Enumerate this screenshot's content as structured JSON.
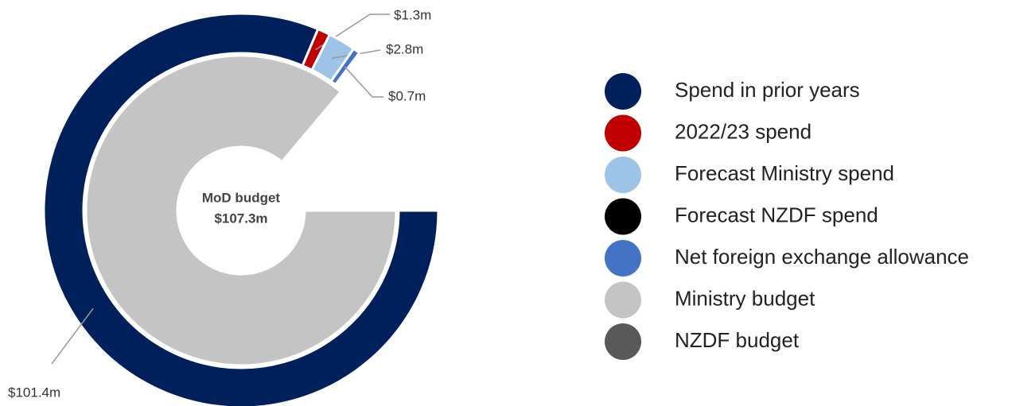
{
  "chart_data": {
    "type": "donut",
    "categories": [
      "Spend in prior years",
      "2022/23 spend",
      "Forecast Ministry spend",
      "Forecast NZDF spend",
      "Net foreign exchange allowance",
      "Ministry budget",
      "NZDF budget"
    ],
    "colors": [
      "#00205b",
      "#c00000",
      "#9dc3e6",
      "#000000",
      "#4472c4",
      "#c4c4c4",
      "#595959"
    ],
    "rings": [
      {
        "values": [
          101.4,
          1.3,
          2.8,
          0,
          0.7,
          null,
          null
        ],
        "value_labels": [
          "$101.4m",
          "$1.3m",
          "$2.8m",
          null,
          "$0.7m",
          null,
          null
        ]
      },
      {
        "values": [
          null,
          null,
          null,
          null,
          null,
          107.3,
          0
        ],
        "value_labels": [
          null,
          null,
          null,
          null,
          null,
          "$107.3m",
          null
        ]
      }
    ],
    "center_title": "MoD budget",
    "legend": "right"
  }
}
